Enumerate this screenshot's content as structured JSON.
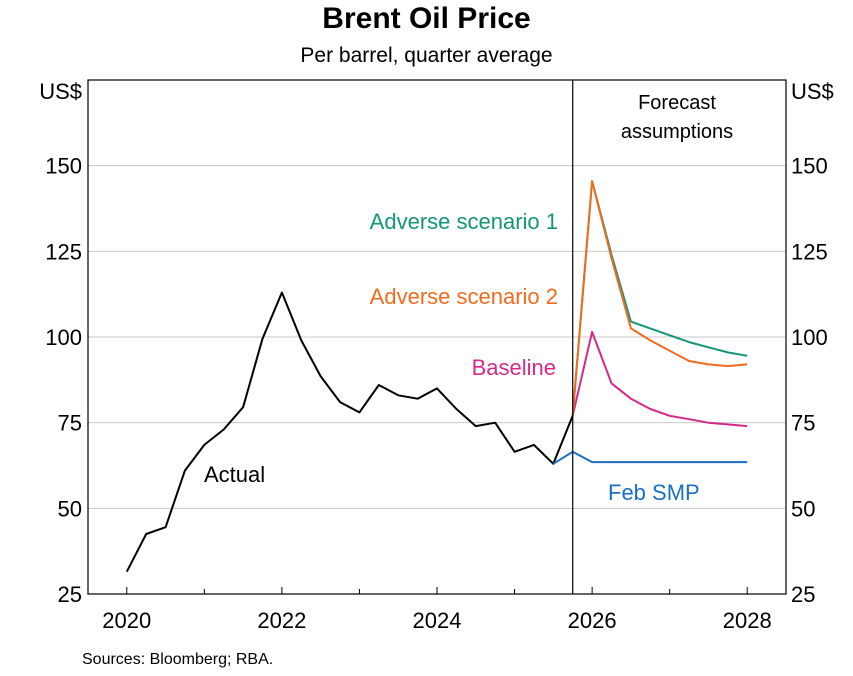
{
  "header": {
    "title": "Brent Oil Price",
    "subtitle": "Per barrel, quarter average"
  },
  "footer": {
    "source": "Sources: Bloomberg; RBA."
  },
  "chart_data": {
    "type": "line",
    "title": "Brent Oil Price",
    "subtitle": "Per barrel, quarter average",
    "y_unit_left": "US$",
    "y_unit_right": "US$",
    "ylim": [
      25,
      175
    ],
    "y_ticks": [
      25,
      50,
      75,
      100,
      125,
      150
    ],
    "xlim": [
      2019.5,
      2028.5
    ],
    "x_ticks": [
      2020,
      2022,
      2024,
      2026,
      2028
    ],
    "x_tick_labels": [
      "2020",
      "2022",
      "2024",
      "2026",
      "2028"
    ],
    "grid": true,
    "forecast_start": 2025.75,
    "forecast_label": [
      "Forecast",
      "assumptions"
    ],
    "series": [
      {
        "name": "Actual",
        "color": "#000000",
        "x": [
          2020.0,
          2020.25,
          2020.5,
          2020.75,
          2021.0,
          2021.25,
          2021.5,
          2021.75,
          2022.0,
          2022.25,
          2022.5,
          2022.75,
          2023.0,
          2023.25,
          2023.5,
          2023.75,
          2024.0,
          2024.25,
          2024.5,
          2024.75,
          2025.0,
          2025.25,
          2025.5,
          2025.75
        ],
        "values": [
          31.5,
          42.5,
          44.5,
          61,
          68.5,
          73,
          79.5,
          99.5,
          113,
          99,
          88.5,
          81,
          78,
          86,
          83,
          82,
          85,
          79,
          74,
          75,
          66.5,
          68.5,
          63,
          77
        ]
      },
      {
        "name": "Feb SMP",
        "color": "#1a6fc4",
        "x": [
          2025.5,
          2025.75,
          2026.0,
          2026.25,
          2026.5,
          2026.75,
          2027.0,
          2027.25,
          2027.5,
          2027.75,
          2028.0
        ],
        "values": [
          63,
          66.5,
          63.5,
          63.5,
          63.5,
          63.5,
          63.5,
          63.5,
          63.5,
          63.5,
          63.5
        ]
      },
      {
        "name": "Baseline",
        "color": "#d6298a",
        "x": [
          2025.75,
          2026.0,
          2026.25,
          2026.5,
          2026.75,
          2027.0,
          2027.25,
          2027.5,
          2027.75,
          2028.0
        ],
        "values": [
          77,
          101.5,
          86.5,
          82,
          79,
          77,
          76,
          75,
          74.5,
          74
        ]
      },
      {
        "name": "Adverse scenario 1",
        "color": "#14957a",
        "x": [
          2025.75,
          2026.0,
          2026.25,
          2026.5,
          2026.75,
          2027.0,
          2027.25,
          2027.5,
          2027.75,
          2028.0
        ],
        "values": [
          77,
          145.5,
          124,
          104.5,
          102.5,
          100.5,
          98.5,
          97,
          95.5,
          94.5
        ]
      },
      {
        "name": "Adverse scenario 2",
        "color": "#f26b1d",
        "x": [
          2025.75,
          2026.0,
          2026.25,
          2026.5,
          2026.75,
          2027.0,
          2027.25,
          2027.5,
          2027.75,
          2028.0
        ],
        "values": [
          77,
          145.5,
          123,
          102.5,
          99,
          96,
          93,
          92,
          91.5,
          92
        ]
      }
    ],
    "annotations": [
      {
        "text": "Adverse scenario 1",
        "series": "Adverse scenario 1"
      },
      {
        "text": "Adverse scenario 2",
        "series": "Adverse scenario 2"
      },
      {
        "text": "Baseline",
        "series": "Baseline"
      },
      {
        "text": "Actual",
        "series": "Actual"
      },
      {
        "text": "Feb SMP",
        "series": "Feb SMP"
      }
    ]
  }
}
